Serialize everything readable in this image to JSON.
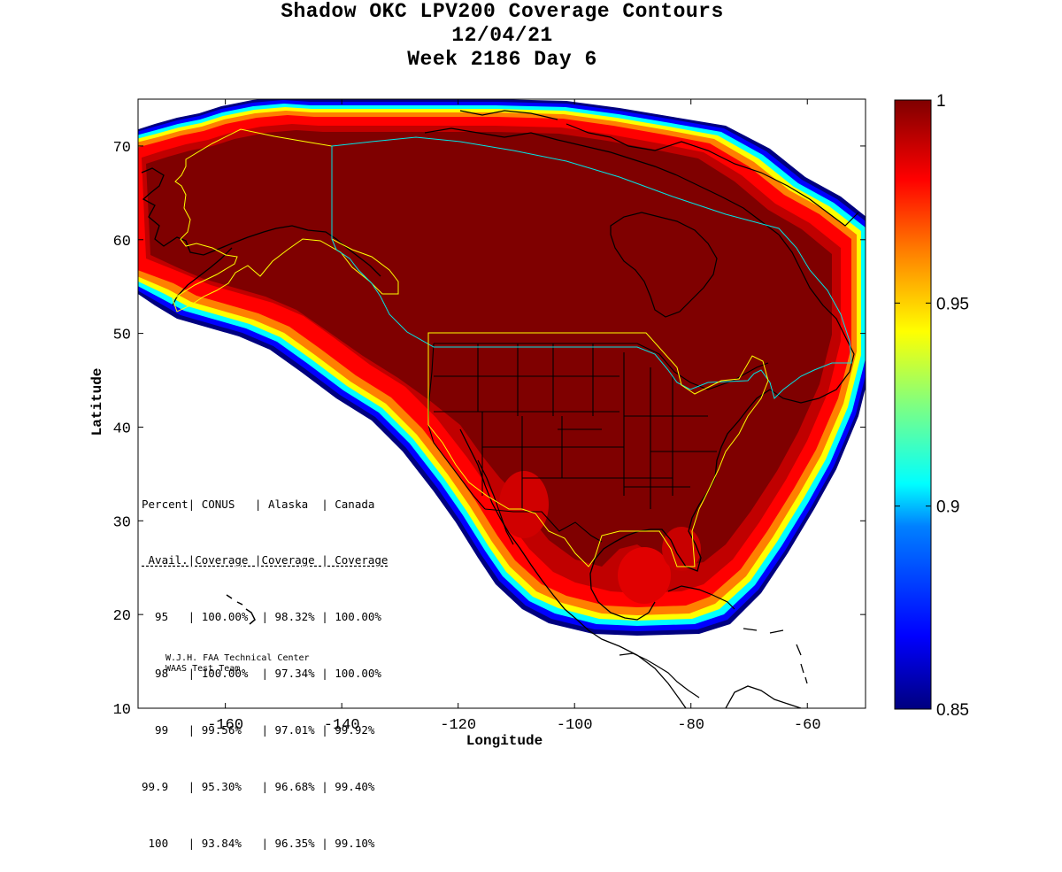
{
  "title": {
    "line1": "Shadow OKC LPV200 Coverage Contours",
    "line2": "12/04/21",
    "line3": "Week 2186 Day 6"
  },
  "axes": {
    "xlabel": "Longitude",
    "ylabel": "Latitude",
    "x_ticks": [
      "-160",
      "-140",
      "-120",
      "-100",
      "-80",
      "-60"
    ],
    "y_ticks": [
      "10",
      "20",
      "30",
      "40",
      "50",
      "60",
      "70"
    ]
  },
  "colorbar": {
    "ticks": [
      "1",
      "0.95",
      "0.9",
      "0.85"
    ],
    "min": 0.85,
    "max": 1
  },
  "stats": {
    "header1": "Percent| CONUS   | Alaska  | Canada",
    "header2": " Avail.|Coverage |Coverage | Coverage",
    "rows": [
      "  95   | 100.00%  | 98.32% | 100.00%",
      "  98   | 100.00%  | 97.34% | 100.00%",
      "  99   | 99.56%   | 97.01% | 99.92%",
      "99.9   | 95.30%   | 96.68% | 99.40%",
      " 100   | 93.84%   | 96.35% | 99.10%"
    ]
  },
  "credits": {
    "line1": "W.J.H. FAA Technical Center",
    "line2": "WAAS Test Team"
  },
  "colors": {
    "dark_red": "#7f0000",
    "red": "#ff0000",
    "orange": "#ff8000",
    "yellow": "#ffff00",
    "cyan": "#00ffff",
    "blue": "#0000ff",
    "navy": "#00007f",
    "boundary_yellow": "#ffff00",
    "boundary_cyan": "#00e5e5"
  }
}
